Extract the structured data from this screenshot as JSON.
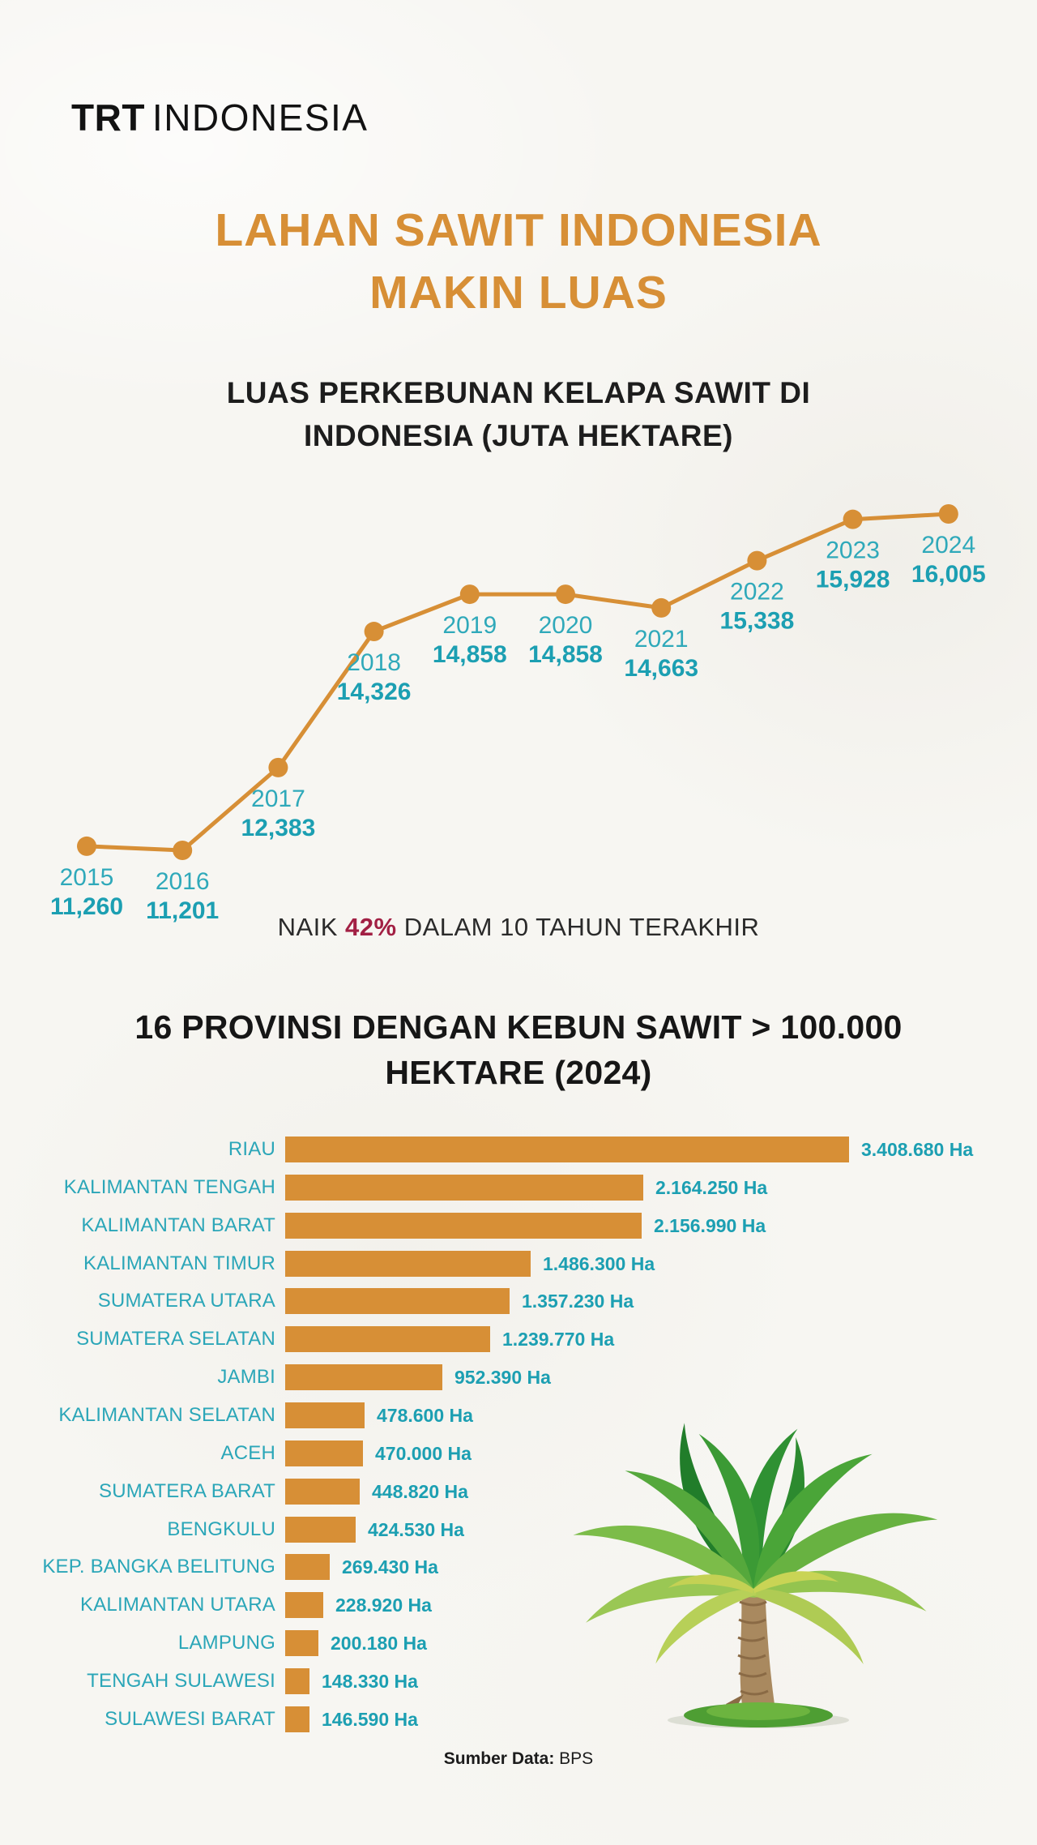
{
  "logo": {
    "bold": "TRT",
    "rest": "INDONESIA"
  },
  "title": {
    "line1": "LAHAN SAWIT INDONESIA",
    "line2": "MAKIN LUAS"
  },
  "subtitle": {
    "line1": "LUAS PERKEBUNAN KELAPA SAWIT DI",
    "line2": "INDONESIA (JUTA HEKTARE)"
  },
  "growth_note": {
    "prefix": "NAIK ",
    "highlight": "42%",
    "suffix": " DALAM 10 TAHUN TERAKHIR"
  },
  "section2_title": {
    "line1": "16 PROVINSI DENGAN KEBUN SAWIT > 100.000",
    "line2": "HEKTARE (2024)"
  },
  "source": {
    "label": "Sumber Data:",
    "value": "BPS"
  },
  "icons": {
    "palm_tree": "palm-tree-illustration"
  },
  "colors": {
    "orange": "#D78F36",
    "teal": "#2BA6B8",
    "teal_dark": "#1C9FB2",
    "crimson": "#A22044",
    "ink": "#1D1D1D",
    "paper": "#F7F6F2"
  },
  "chart_data": [
    {
      "type": "line",
      "title": "LUAS PERKEBUNAN KELAPA SAWIT DI INDONESIA (JUTA HEKTARE)",
      "x": [
        "2015",
        "2016",
        "2017",
        "2018",
        "2019",
        "2020",
        "2021",
        "2022",
        "2023",
        "2024"
      ],
      "values": [
        11260,
        11201,
        12383,
        14326,
        14858,
        14858,
        14663,
        15338,
        15928,
        16005
      ],
      "value_labels": [
        "11,260",
        "11,201",
        "12,383",
        "14,326",
        "14,858",
        "14,858",
        "14,663",
        "15,338",
        "15,928",
        "16,005"
      ],
      "ylim": [
        11000,
        16200
      ],
      "grid": false,
      "legend": "none",
      "line_color": "#D78F36",
      "marker": "circle"
    },
    {
      "type": "bar",
      "orientation": "horizontal",
      "title": "16 PROVINSI DENGAN KEBUN SAWIT > 100.000 HEKTARE (2024)",
      "categories": [
        "RIAU",
        "KALIMANTAN TENGAH",
        "KALIMANTAN BARAT",
        "KALIMANTAN TIMUR",
        "SUMATERA UTARA",
        "SUMATERA SELATAN",
        "JAMBI",
        "KALIMANTAN SELATAN",
        "ACEH",
        "SUMATERA BARAT",
        "BENGKULU",
        "KEP. BANGKA BELITUNG",
        "KALIMANTAN UTARA",
        "LAMPUNG",
        "TENGAH SULAWESI",
        "SULAWESI BARAT"
      ],
      "values": [
        3408680,
        2164250,
        2156990,
        1486300,
        1357230,
        1239770,
        952390,
        478600,
        470000,
        448820,
        424530,
        269430,
        228920,
        200180,
        148330,
        146590
      ],
      "value_labels": [
        "3.408.680 Ha",
        "2.164.250 Ha",
        "2.156.990 Ha",
        "1.486.300 Ha",
        "1.357.230 Ha",
        "1.239.770 Ha",
        "952.390 Ha",
        "478.600 Ha",
        "470.000 Ha",
        "448.820 Ha",
        "424.530 Ha",
        "269.430 Ha",
        "228.920 Ha",
        "200.180 Ha",
        "148.330 Ha",
        "146.590 Ha"
      ],
      "xlim": [
        0,
        3500000
      ],
      "grid": false,
      "legend": "none",
      "bar_color": "#D78F36"
    }
  ]
}
